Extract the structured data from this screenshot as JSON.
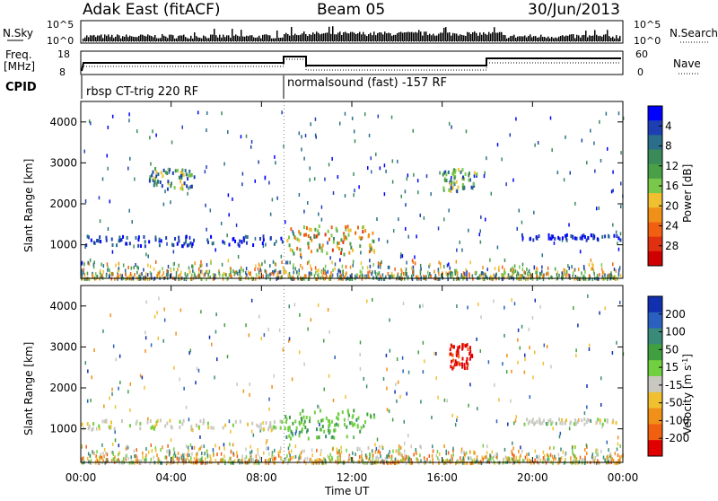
{
  "header": {
    "title": "Adak East (fitACF)",
    "beam": "Beam 05",
    "date": "30/Jun/2013"
  },
  "panels": {
    "nsky": {
      "label": "N.Sky",
      "tick_top": "10^5",
      "tick_bottom": "10^0",
      "right_label": "N.Search"
    },
    "freq": {
      "label_1": "Freq.",
      "label_2": "[MHz]",
      "tick_top": "18",
      "tick_bottom": "8",
      "right_tick_top": "60",
      "right_tick_bottom": "0",
      "right_label": "Nave"
    },
    "cpid": {
      "label": "CPID",
      "segments": [
        {
          "start_hour": 0,
          "text": "rbsp CT-trig 220 RF"
        },
        {
          "start_hour": 9,
          "text": "normalsound (fast) -157 RF"
        }
      ]
    }
  },
  "chart_data": [
    {
      "type": "heatmap",
      "name": "power",
      "ylabel": "Slant Range [km]",
      "xlim": [
        0,
        24
      ],
      "ylim": [
        180,
        4500
      ],
      "yticks": [
        1000,
        2000,
        3000,
        4000
      ],
      "colorbar": {
        "label": "Power [dB]",
        "ticks": [
          "4",
          "8",
          "12",
          "16",
          "20",
          "24",
          "28"
        ],
        "colors": [
          "#0000ff",
          "#1e3fb4",
          "#2a6e8c",
          "#3b8a5a",
          "#4aa046",
          "#7ac84a",
          "#f0c030",
          "#f09018",
          "#f06010",
          "#e03010",
          "#d00000"
        ]
      },
      "features": [
        {
          "hours": [
            0,
            9
          ],
          "range_km": [
            1000,
            1250
          ],
          "level": "low"
        },
        {
          "hours": [
            9,
            13
          ],
          "range_km": [
            800,
            1500
          ],
          "level": "high"
        },
        {
          "hours": [
            3,
            5
          ],
          "range_km": [
            2400,
            2900
          ],
          "level": "medium"
        },
        {
          "hours": [
            16,
            17.5
          ],
          "range_km": [
            2300,
            2900
          ],
          "level": "medium"
        },
        {
          "hours": [
            19.5,
            24
          ],
          "range_km": [
            1150,
            1280
          ],
          "level": "low"
        }
      ]
    },
    {
      "type": "heatmap",
      "name": "velocity",
      "ylabel": "Slant Range [km]",
      "xlabel": "Time UT",
      "xlim": [
        0,
        24
      ],
      "ylim": [
        180,
        4500
      ],
      "yticks": [
        1000,
        2000,
        3000,
        4000
      ],
      "xticks": [
        "00:00",
        "04:00",
        "08:00",
        "12:00",
        "16:00",
        "20:00",
        "00:00"
      ],
      "colorbar": {
        "label": "Velocity [m s^-1]",
        "ticks": [
          "200",
          "100",
          "50",
          "15",
          "-15",
          "-50",
          "-100",
          "-200"
        ],
        "colors": [
          "#1030b0",
          "#2a60c0",
          "#3a8a7a",
          "#40a040",
          "#70d040",
          "#c8c8c0",
          "#f0c030",
          "#f09018",
          "#f06010",
          "#e00000"
        ]
      },
      "features": [
        {
          "hours": [
            0,
            9
          ],
          "range_km": [
            1000,
            1250
          ],
          "level": "ground-scatter"
        },
        {
          "hours": [
            9,
            13
          ],
          "range_km": [
            800,
            1500
          ],
          "level": "positive"
        },
        {
          "hours": [
            16.3,
            17.3
          ],
          "range_km": [
            2500,
            3100
          ],
          "level": "strong-negative"
        },
        {
          "hours": [
            19.5,
            24
          ],
          "range_km": [
            1150,
            1280
          ],
          "level": "ground-scatter"
        }
      ]
    }
  ]
}
